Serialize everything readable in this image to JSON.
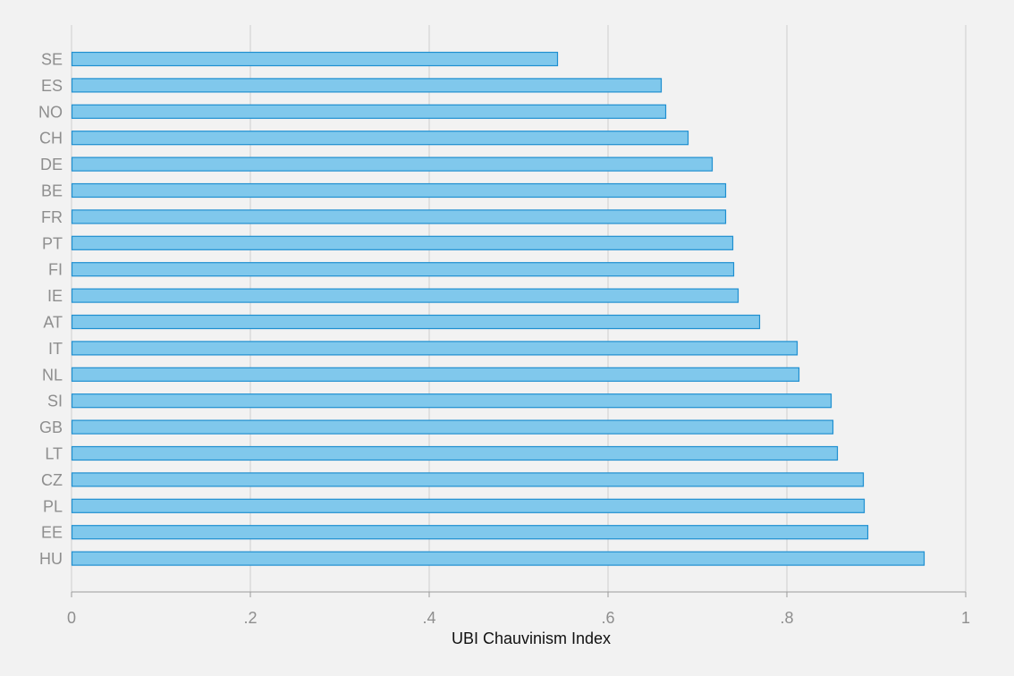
{
  "chart_data": {
    "type": "bar",
    "orientation": "horizontal",
    "xlabel": "UBI Chauvinism Index",
    "ylabel": "",
    "xlim": [
      0,
      1
    ],
    "xticks": [
      0,
      0.2,
      0.4,
      0.6,
      0.8,
      1
    ],
    "xtick_labels": [
      "0",
      ".2",
      ".4",
      ".6",
      ".8",
      "1"
    ],
    "grid": true,
    "bar_fill": "#80c8ec",
    "bar_stroke": "#1f8fd0",
    "background": "#f2f2f2",
    "categories": [
      "SE",
      "ES",
      "NO",
      "CH",
      "DE",
      "BE",
      "FR",
      "PT",
      "FI",
      "IE",
      "AT",
      "IT",
      "NL",
      "SI",
      "GB",
      "LT",
      "CZ",
      "PL",
      "EE",
      "HU"
    ],
    "values": [
      0.543,
      0.659,
      0.664,
      0.689,
      0.716,
      0.731,
      0.731,
      0.739,
      0.74,
      0.745,
      0.769,
      0.811,
      0.813,
      0.849,
      0.851,
      0.856,
      0.885,
      0.886,
      0.89,
      0.953
    ]
  }
}
